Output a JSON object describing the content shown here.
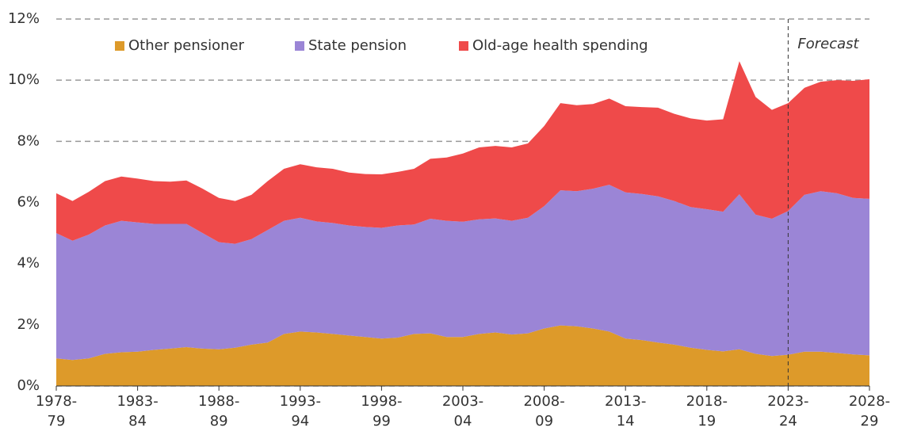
{
  "chart_data": {
    "type": "stacked_area",
    "categories": [
      "1978-\n79",
      null,
      null,
      null,
      null,
      "1983-\n84",
      null,
      null,
      null,
      null,
      "1988-\n89",
      null,
      null,
      null,
      null,
      "1993-\n94",
      null,
      null,
      null,
      null,
      "1998-\n99",
      null,
      null,
      null,
      null,
      "2003-\n04",
      null,
      null,
      null,
      null,
      "2008-\n09",
      null,
      null,
      null,
      null,
      "2013-\n14",
      null,
      null,
      null,
      null,
      "2018-\n19",
      null,
      null,
      null,
      null,
      "2023-\n24",
      null,
      null,
      null,
      null,
      "2028-\n29"
    ],
    "series": [
      {
        "name": "Other pensioner",
        "color": "#dd9a2a",
        "values": [
          0.9,
          0.85,
          0.9,
          1.05,
          1.1,
          1.12,
          1.18,
          1.22,
          1.27,
          1.22,
          1.2,
          1.25,
          1.35,
          1.42,
          1.7,
          1.78,
          1.75,
          1.7,
          1.65,
          1.6,
          1.55,
          1.58,
          1.7,
          1.72,
          1.6,
          1.6,
          1.7,
          1.75,
          1.68,
          1.72,
          1.88,
          1.98,
          1.95,
          1.88,
          1.78,
          1.55,
          1.5,
          1.42,
          1.35,
          1.25,
          1.18,
          1.13,
          1.2,
          1.05,
          0.98,
          1.02,
          1.12,
          1.12,
          1.08,
          1.03,
          1.0
        ]
      },
      {
        "name": "State pension",
        "color": "#9b85d6",
        "values": [
          4.1,
          3.9,
          4.05,
          4.2,
          4.3,
          4.23,
          4.12,
          4.08,
          4.03,
          3.78,
          3.5,
          3.4,
          3.45,
          3.68,
          3.7,
          3.72,
          3.63,
          3.63,
          3.6,
          3.6,
          3.62,
          3.67,
          3.58,
          3.75,
          3.8,
          3.77,
          3.75,
          3.73,
          3.72,
          3.78,
          4.0,
          4.42,
          4.42,
          4.57,
          4.8,
          4.78,
          4.78,
          4.78,
          4.7,
          4.6,
          4.6,
          4.57,
          5.07,
          4.55,
          4.49,
          4.7,
          5.13,
          5.25,
          5.22,
          5.12,
          5.12
        ]
      },
      {
        "name": "Old-age health spending",
        "color": "#ef4a4a",
        "values": [
          1.3,
          1.3,
          1.4,
          1.45,
          1.45,
          1.43,
          1.4,
          1.38,
          1.42,
          1.45,
          1.45,
          1.4,
          1.45,
          1.6,
          1.7,
          1.75,
          1.77,
          1.77,
          1.73,
          1.73,
          1.75,
          1.75,
          1.82,
          1.96,
          2.07,
          2.23,
          2.35,
          2.37,
          2.4,
          2.43,
          2.62,
          2.85,
          2.81,
          2.77,
          2.82,
          2.82,
          2.84,
          2.9,
          2.85,
          2.9,
          2.9,
          3.02,
          4.35,
          3.85,
          3.56,
          3.53,
          3.5,
          3.58,
          3.7,
          3.83,
          3.91
        ]
      }
    ],
    "ylim": [
      0,
      12
    ],
    "yticks": [
      {
        "value": 0,
        "label": "0%"
      },
      {
        "value": 2,
        "label": "2%"
      },
      {
        "value": 4,
        "label": "4%"
      },
      {
        "value": 6,
        "label": "6%"
      },
      {
        "value": 8,
        "label": "8%"
      },
      {
        "value": 10,
        "label": "10%"
      },
      {
        "value": 12,
        "label": "12%"
      }
    ],
    "grid": true,
    "annotation": {
      "text": "Forecast",
      "x": "2023-\n24"
    }
  }
}
